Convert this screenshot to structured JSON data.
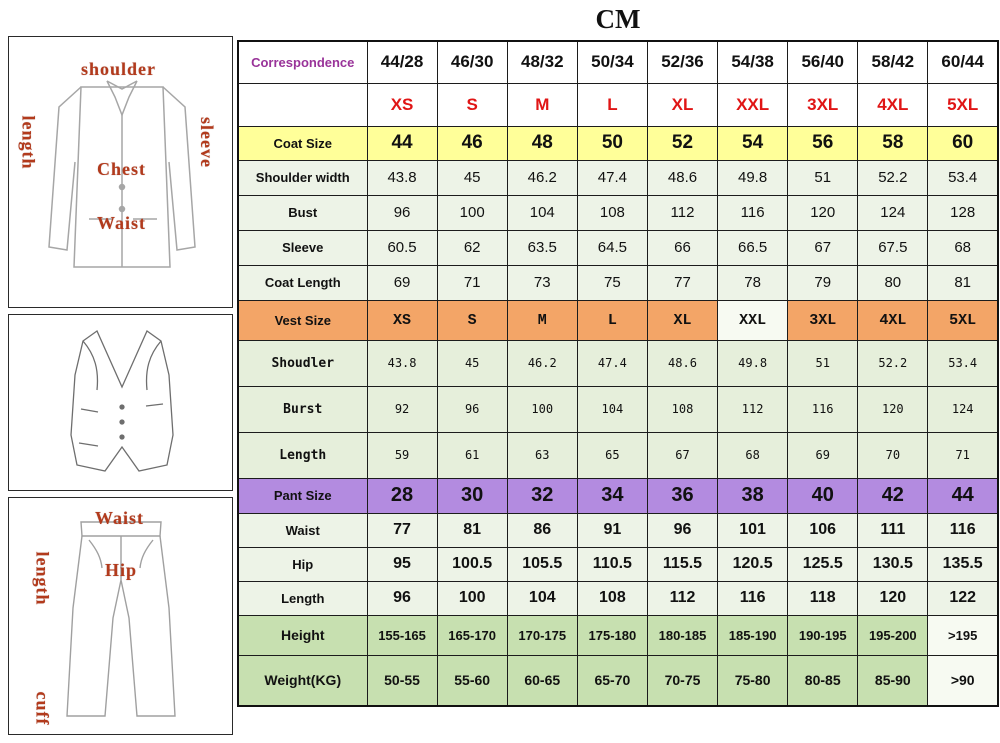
{
  "title": "CM",
  "diagrams": {
    "jacket": {
      "labels": {
        "shoulder": "shoulder",
        "length": "length",
        "sleeve": "sleeve",
        "chest": "Chest",
        "waist": "Waist"
      }
    },
    "pants": {
      "labels": {
        "waist": "Waist",
        "length": "length",
        "hip": "Hip",
        "cuff": "cuff"
      }
    }
  },
  "table": {
    "rows": [
      {
        "type": "correspondence",
        "label": "Correspondence",
        "values": [
          "44/28",
          "46/30",
          "48/32",
          "50/34",
          "52/36",
          "54/38",
          "56/40",
          "58/42",
          "60/44"
        ]
      },
      {
        "type": "size-letters",
        "label": "",
        "values": [
          "XS",
          "S",
          "M",
          "L",
          "XL",
          "XXL",
          "3XL",
          "4XL",
          "5XL"
        ]
      },
      {
        "type": "coat-size",
        "label": "Coat Size",
        "values": [
          "44",
          "46",
          "48",
          "50",
          "52",
          "54",
          "56",
          "58",
          "60"
        ]
      },
      {
        "type": "coat-detail",
        "label": "Shoulder width",
        "values": [
          "43.8",
          "45",
          "46.2",
          "47.4",
          "48.6",
          "49.8",
          "51",
          "52.2",
          "53.4"
        ]
      },
      {
        "type": "coat-detail",
        "label": "Bust",
        "values": [
          "96",
          "100",
          "104",
          "108",
          "112",
          "116",
          "120",
          "124",
          "128"
        ]
      },
      {
        "type": "coat-detail",
        "label": "Sleeve",
        "values": [
          "60.5",
          "62",
          "63.5",
          "64.5",
          "66",
          "66.5",
          "67",
          "67.5",
          "68"
        ]
      },
      {
        "type": "coat-detail",
        "label": "Coat Length",
        "values": [
          "69",
          "71",
          "73",
          "75",
          "77",
          "78",
          "79",
          "80",
          "81"
        ]
      },
      {
        "type": "vest-size",
        "label": "Vest Size",
        "values": [
          "XS",
          "S",
          "M",
          "L",
          "XL",
          "XXL",
          "3XL",
          "4XL",
          "5XL"
        ],
        "pale_cells": [
          5
        ]
      },
      {
        "type": "vest-detail",
        "label": "Shoudler",
        "values": [
          "43.8",
          "45",
          "46.2",
          "47.4",
          "48.6",
          "49.8",
          "51",
          "52.2",
          "53.4"
        ]
      },
      {
        "type": "vest-detail",
        "label": "Burst",
        "values": [
          "92",
          "96",
          "100",
          "104",
          "108",
          "112",
          "116",
          "120",
          "124"
        ]
      },
      {
        "type": "vest-detail",
        "label": "Length",
        "values": [
          "59",
          "61",
          "63",
          "65",
          "67",
          "68",
          "69",
          "70",
          "71"
        ]
      },
      {
        "type": "pant-size",
        "label": "Pant Size",
        "values": [
          "28",
          "30",
          "32",
          "34",
          "36",
          "38",
          "40",
          "42",
          "44"
        ]
      },
      {
        "type": "pant-detail",
        "label": "Waist",
        "values": [
          "77",
          "81",
          "86",
          "91",
          "96",
          "101",
          "106",
          "111",
          "116"
        ]
      },
      {
        "type": "pant-detail",
        "label": "Hip",
        "values": [
          "95",
          "100.5",
          "105.5",
          "110.5",
          "115.5",
          "120.5",
          "125.5",
          "130.5",
          "135.5"
        ]
      },
      {
        "type": "pant-detail",
        "label": "Length",
        "values": [
          "96",
          "100",
          "104",
          "108",
          "112",
          "116",
          "118",
          "120",
          "122"
        ]
      },
      {
        "type": "height-range",
        "label": "Height",
        "values": [
          "155-165",
          "165-170",
          "170-175",
          "175-180",
          "180-185",
          "185-190",
          "190-195",
          "195-200",
          ">195"
        ],
        "pale_cells": [
          8
        ]
      },
      {
        "type": "weight-range",
        "label": "Weight(KG)",
        "values": [
          "50-55",
          "55-60",
          "60-65",
          "65-70",
          "70-75",
          "75-80",
          "80-85",
          "85-90",
          ">90"
        ],
        "pale_cells": [
          8
        ]
      }
    ]
  },
  "colors": {
    "coat_size_bg": "#ffff99",
    "vest_size_bg": "#f3a567",
    "pant_size_bg": "#b38be0",
    "detail_bg": "#edf3e7",
    "footer_bg": "#c7e0b0",
    "correspondence_text": "#993399",
    "size_letter_text": "#e01515",
    "diagram_label_text": "#b23a1c"
  }
}
